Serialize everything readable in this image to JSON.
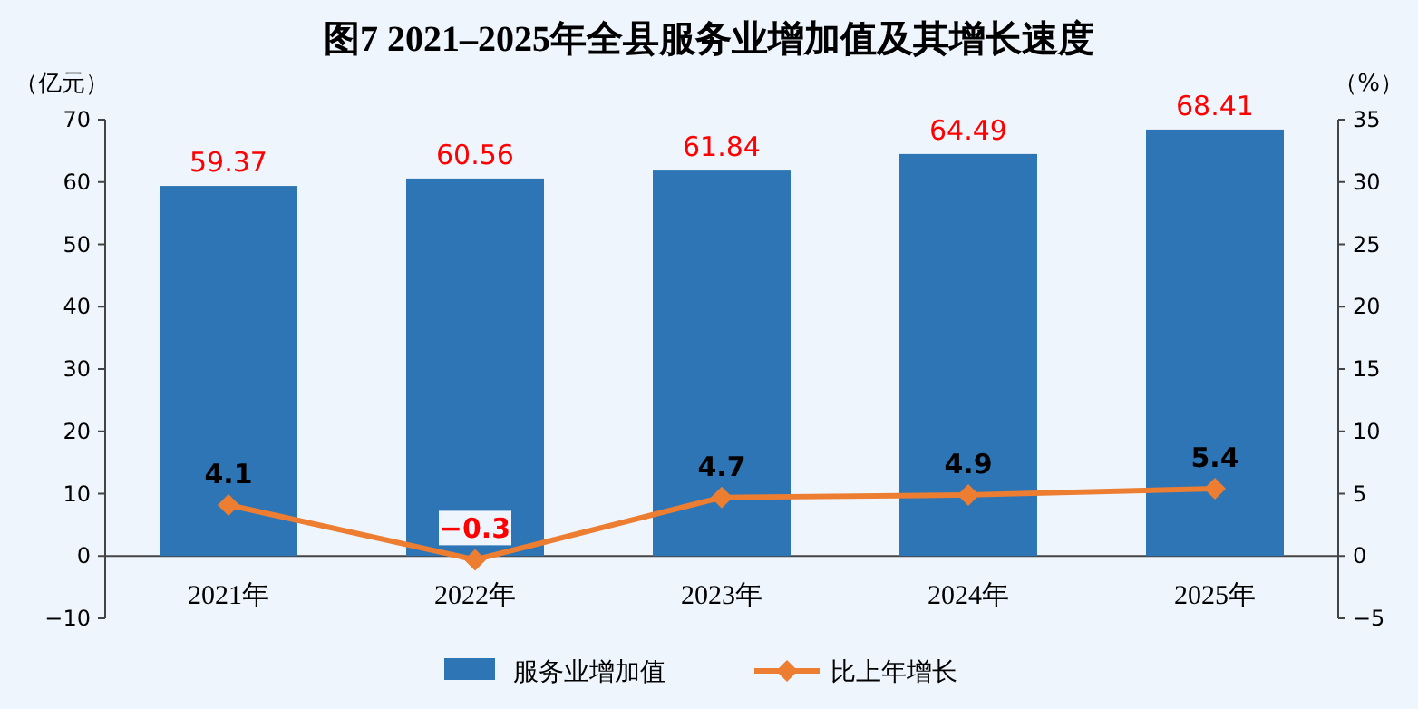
{
  "chart_data": {
    "type": "bar",
    "title": "图7  2021–2025年全县服务业增加值及其增长速度",
    "categories": [
      "2021年",
      "2022年",
      "2023年",
      "2024年",
      "2025年"
    ],
    "ylabel": "（亿元）",
    "y2label": "（%）",
    "ylim": [
      -10,
      70
    ],
    "yticks": [
      -10,
      0,
      10,
      20,
      30,
      40,
      50,
      60,
      70
    ],
    "y2lim": [
      -5,
      35
    ],
    "y2ticks": [
      -5,
      0,
      5,
      10,
      15,
      20,
      25,
      30,
      35
    ],
    "data_labels": true,
    "grid": false,
    "legend": "bottom",
    "series": [
      {
        "name": "服务业增加值",
        "color": "#2e75b6",
        "values": [
          59.37,
          60.56,
          61.84,
          64.49,
          68.41
        ]
      },
      {
        "name": "比上年增长",
        "type": "line",
        "axis": "y2",
        "color": "#ed7d31",
        "marker": "diamond",
        "line_style": "solid",
        "values": [
          4.1,
          -0.3,
          4.7,
          4.9,
          5.4
        ]
      }
    ]
  }
}
